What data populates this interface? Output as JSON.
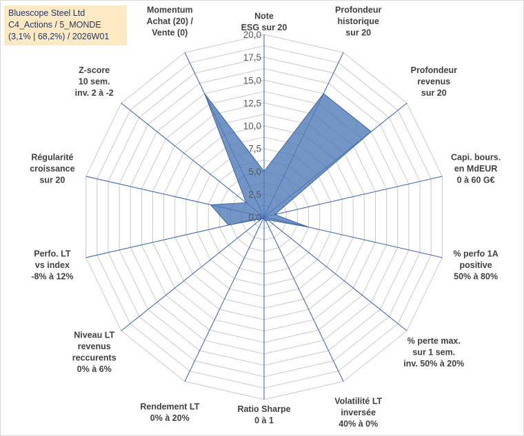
{
  "title_lines": [
    "Bluescope Steel Ltd",
    "C4_Actions / 5_MONDE",
    "(3,1% | 68,2%) / 2026W01"
  ],
  "chart_data": {
    "type": "radar",
    "rmin": 0,
    "rmax": 20,
    "tick_step": 2.5,
    "tick_labels": [
      "0,0",
      "2,5",
      "5,0",
      "7,5",
      "10,0",
      "12,5",
      "15,0",
      "17,5",
      "20,0"
    ],
    "grid": true,
    "legend": "none",
    "fill_color": "#4f7ab8",
    "fill_opacity": 0.8,
    "outline_color": "#3a62a0",
    "spoke_color": "#2f5fb3",
    "grid_color": "#c8c8c8",
    "axes": [
      {
        "label": [
          "Note",
          "ESG sur 20"
        ],
        "value": 5.0
      },
      {
        "label": [
          "Profondeur",
          "historique",
          "sur 20"
        ],
        "value": 15.0
      },
      {
        "label": [
          "Profondeur",
          "revenus",
          "sur 20"
        ],
        "value": 15.0
      },
      {
        "label": [
          "Capi. bours.",
          "en MdEUR",
          "0 à 60 G€"
        ],
        "value": 1.2
      },
      {
        "label": [
          "% perfo 1A",
          "positive",
          "50% à 80%"
        ],
        "value": 5.0
      },
      {
        "label": [
          "% perte max.",
          "sur 1 sem.",
          "inv. 50% à 20%"
        ],
        "value": 0.5
      },
      {
        "label": [
          "Volatilité LT",
          "inversée",
          "40% à 0%"
        ],
        "value": 0.5
      },
      {
        "label": [
          "Ratio Sharpe",
          "0 à 1"
        ],
        "value": 0.3
      },
      {
        "label": [
          "Rendement LT",
          "0% à 20%"
        ],
        "value": 0.2
      },
      {
        "label": [
          "Niveau LT",
          "revenus",
          "reccurents",
          "0% à 6%"
        ],
        "value": 0.3
      },
      {
        "label": [
          "Perfo. LT",
          "vs index",
          "-8% à 12%"
        ],
        "value": 4.0
      },
      {
        "label": [
          "Régularité",
          "croissance",
          "sur 20"
        ],
        "value": 6.0
      },
      {
        "label": [
          "Z-score",
          "10 sem.",
          "inv. 2 à -2"
        ],
        "value": 2.5
      },
      {
        "label": [
          "Momentum",
          "Achat (20) /",
          "Vente (0)"
        ],
        "value": 15.0
      }
    ]
  }
}
